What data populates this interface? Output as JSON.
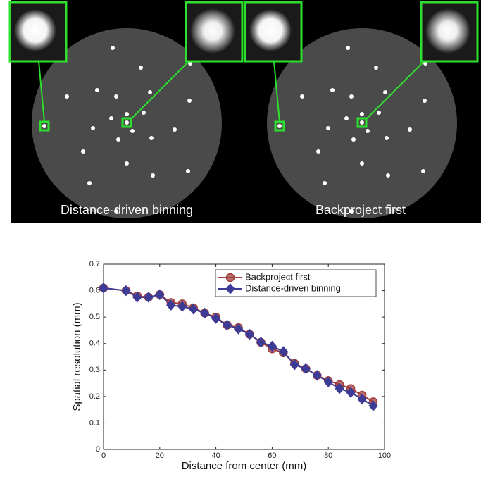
{
  "panels": [
    {
      "caption": "Distance-driven binning"
    },
    {
      "caption": "Backproject first"
    }
  ],
  "chart_data": {
    "type": "line",
    "xlabel": "Distance from center (mm)",
    "ylabel": "Spatial resolution (mm)",
    "x": [
      0,
      8,
      12,
      16,
      20,
      24,
      28,
      32,
      36,
      40,
      44,
      48,
      52,
      56,
      60,
      64,
      68,
      72,
      76,
      80,
      84,
      88,
      92,
      96
    ],
    "series": [
      {
        "name": "Backproject first",
        "color": "#a03c3c",
        "marker": "circle",
        "values": [
          0.61,
          0.6,
          0.58,
          0.575,
          0.585,
          0.555,
          0.55,
          0.535,
          0.515,
          0.5,
          0.47,
          0.46,
          0.435,
          0.405,
          0.38,
          0.365,
          0.325,
          0.305,
          0.28,
          0.26,
          0.245,
          0.23,
          0.205,
          0.18
        ]
      },
      {
        "name": "Distance-driven binning",
        "color": "#3c3c96",
        "marker": "diamond",
        "values": [
          0.61,
          0.6,
          0.575,
          0.575,
          0.585,
          0.545,
          0.54,
          0.53,
          0.515,
          0.495,
          0.47,
          0.455,
          0.435,
          0.405,
          0.39,
          0.37,
          0.32,
          0.305,
          0.28,
          0.255,
          0.23,
          0.215,
          0.19,
          0.165
        ]
      }
    ],
    "xlim": [
      0,
      100
    ],
    "xticks": [
      0,
      20,
      40,
      60,
      80,
      100
    ],
    "ylim": [
      0,
      0.7
    ],
    "yticks": [
      0,
      0.1,
      0.2,
      0.3,
      0.4,
      0.5,
      0.6,
      0.7
    ],
    "legend": "top-right"
  }
}
